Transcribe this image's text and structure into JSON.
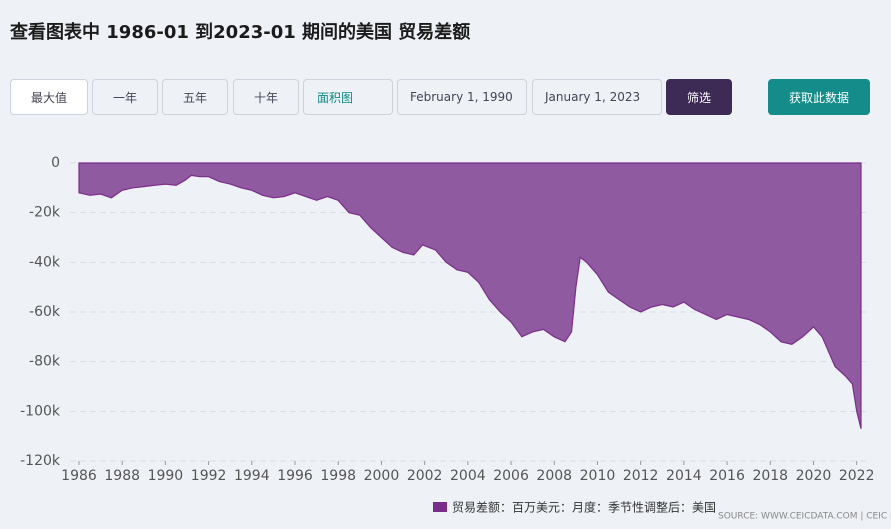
{
  "header": {
    "title": "查看图表中 1986-01 到2023-01 期间的美国 贸易差额"
  },
  "controls": {
    "ranges": [
      "最大值",
      "一年",
      "五年",
      "十年"
    ],
    "chart_kind": "面积图",
    "start_date": "February 1, 1990",
    "end_date": "January 1, 2023",
    "filter": "筛选",
    "get_data": "获取此数据"
  },
  "chart_data": {
    "type": "area",
    "color": "#7b2d8b",
    "fill": "#8f5a9f",
    "grid": true,
    "source": "SOURCE: WWW.CEICDATA.COM | CEIC Data",
    "xlim": [
      1986,
      2022.2
    ],
    "xticks": [
      1986,
      1988,
      1990,
      1992,
      1994,
      1996,
      1998,
      2000,
      2002,
      2004,
      2006,
      2008,
      2010,
      2012,
      2014,
      2016,
      2018,
      2020,
      2022
    ],
    "ylim": [
      -120000,
      0
    ],
    "yticks": [
      0,
      {
        "value": -20000,
        "label": "-20k"
      },
      {
        "value": -40000,
        "label": "-40k"
      },
      {
        "value": -60000,
        "label": "-60k"
      },
      {
        "value": -80000,
        "label": "-80k"
      },
      {
        "value": -100000,
        "label": "-100k"
      },
      {
        "value": -120000,
        "label": "-120k"
      }
    ],
    "series": [
      {
        "name": "贸易差额：百万美元：月度：季节性调整后：美国",
        "color": "#7b2d8b",
        "x": [
          1986.0,
          1986.5,
          1987.0,
          1987.5,
          1988.0,
          1988.5,
          1989.0,
          1989.5,
          1990.0,
          1990.5,
          1990.9,
          1991.2,
          1991.6,
          1992.0,
          1992.5,
          1993.0,
          1993.5,
          1994.0,
          1994.5,
          1995.0,
          1995.5,
          1996.0,
          1996.5,
          1997.0,
          1997.5,
          1998.0,
          1998.5,
          1999.0,
          1999.5,
          2000.0,
          2000.5,
          2001.0,
          2001.5,
          2001.9,
          2002.5,
          2003.0,
          2003.5,
          2004.0,
          2004.5,
          2005.0,
          2005.5,
          2006.0,
          2006.5,
          2007.0,
          2007.5,
          2008.0,
          2008.5,
          2008.8,
          2009.0,
          2009.2,
          2009.5,
          2010.0,
          2010.5,
          2011.0,
          2011.5,
          2012.0,
          2012.5,
          2013.0,
          2013.5,
          2014.0,
          2014.5,
          2015.0,
          2015.5,
          2016.0,
          2016.5,
          2017.0,
          2017.5,
          2018.0,
          2018.5,
          2019.0,
          2019.5,
          2020.0,
          2020.4,
          2020.8,
          2021.0,
          2021.5,
          2021.8,
          2022.0,
          2022.2
        ],
        "values": [
          -12000,
          -13000,
          -12500,
          -14000,
          -11000,
          -10000,
          -9500,
          -9000,
          -8500,
          -9000,
          -7000,
          -5000,
          -5500,
          -5500,
          -7500,
          -8500,
          -10000,
          -11000,
          -13000,
          -14000,
          -13500,
          -12000,
          -13500,
          -15000,
          -13500,
          -15000,
          -20000,
          -21000,
          -26000,
          -30000,
          -34000,
          -36000,
          -37000,
          -33000,
          -35000,
          -40000,
          -43000,
          -44000,
          -48000,
          -55000,
          -60000,
          -64000,
          -70000,
          -68000,
          -67000,
          -70000,
          -72000,
          -68000,
          -50000,
          -38000,
          -40000,
          -45000,
          -52000,
          -55000,
          -58000,
          -60000,
          -58000,
          -57000,
          -58000,
          -56000,
          -59000,
          -61000,
          -63000,
          -61000,
          -62000,
          -63000,
          -65000,
          -68000,
          -72000,
          -73000,
          -70000,
          -66000,
          -70000,
          -78000,
          -82000,
          -86000,
          -89000,
          -100000,
          -107000
        ]
      }
    ]
  }
}
